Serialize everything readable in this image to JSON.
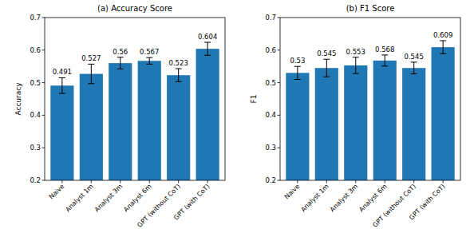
{
  "chart_data": [
    {
      "type": "bar",
      "title": "(a) Accuracy Score",
      "y_label": "Accuracy",
      "categories": [
        "Naive",
        "Analyst 1m",
        "Analyst 3m",
        "Analyst 6m",
        "GPT (without CoT)",
        "GPT (with CoT)"
      ],
      "values": [
        0.491,
        0.527,
        0.56,
        0.567,
        0.523,
        0.604
      ],
      "errors": [
        0.024,
        0.03,
        0.018,
        0.01,
        0.02,
        0.02
      ],
      "color": "#1f77b4",
      "ylim": [
        0.2,
        0.7
      ],
      "yticks": [
        0.2,
        0.3,
        0.4,
        0.5,
        0.6,
        0.7
      ],
      "data_labels": true
    },
    {
      "type": "bar",
      "title": "(b) F1 Score",
      "y_label": "F1",
      "categories": [
        "Naive",
        "Analyst 1m",
        "Analyst 3m",
        "Analyst 6m",
        "GPT (without CoT)",
        "GPT (with CoT)"
      ],
      "values": [
        0.53,
        0.545,
        0.553,
        0.568,
        0.545,
        0.609
      ],
      "errors": [
        0.02,
        0.027,
        0.025,
        0.017,
        0.018,
        0.02
      ],
      "color": "#1f77b4",
      "ylim": [
        0.2,
        0.7
      ],
      "yticks": [
        0.2,
        0.3,
        0.4,
        0.5,
        0.6,
        0.7
      ],
      "data_labels": true
    }
  ]
}
